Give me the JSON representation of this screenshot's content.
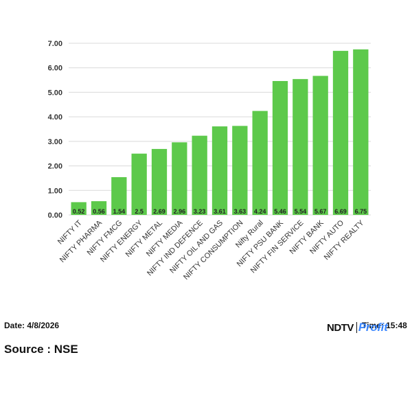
{
  "chart_data": {
    "type": "bar",
    "categories": [
      "NIFTY IT",
      "NIFTY PHARMA",
      "NIFTY FMCG",
      "NIFTY ENERGY",
      "NIFTY METAL",
      "NIFTY MEDIA",
      "NIFTY IND DEFENCE",
      "NIFTY OIL AND GAS",
      "NIFTY CONSUMPTION",
      "Nifty Rural",
      "NIFTY PSU BANK",
      "NIFTY FIN SERVICE",
      "NIFTY BANK",
      "NIFTY AUTO",
      "NIFTY REALTY"
    ],
    "values": [
      0.52,
      0.56,
      1.54,
      2.5,
      2.69,
      2.96,
      3.23,
      3.61,
      3.63,
      4.24,
      5.46,
      5.54,
      5.67,
      6.69,
      6.75
    ],
    "data_labels": [
      "0.52",
      "0.56",
      "1.54",
      "2.5",
      "2.69",
      "2.96",
      "3.23",
      "3.61",
      "3.63",
      "4.24",
      "5.46",
      "5.54",
      "5.67",
      "6.69",
      "6.75"
    ],
    "y_ticks": [
      "0.00",
      "1.00",
      "2.00",
      "3.00",
      "4.00",
      "5.00",
      "6.00",
      "7.00"
    ],
    "ylim": [
      0,
      7
    ],
    "grid": true,
    "bar_color": "#5dc94b",
    "title": "",
    "xlabel": "",
    "ylabel": ""
  },
  "footer": {
    "date": "Date: 4/8/2026",
    "source": "Source : NSE",
    "time": "Time: 15:48",
    "brand": "NDTV",
    "brand_sub": "Profit",
    "brand_color": "#2f80ff"
  }
}
